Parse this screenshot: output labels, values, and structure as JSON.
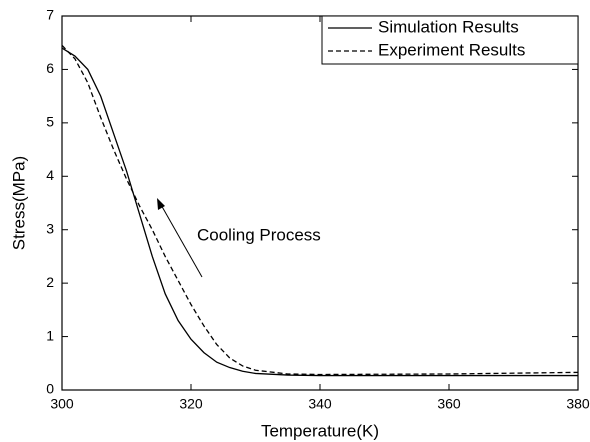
{
  "chart_data": {
    "type": "line",
    "x_label": "Temperature(K)",
    "y_label": "Stress(MPa)",
    "x": [
      300,
      302,
      304,
      306,
      308,
      310,
      312,
      314,
      316,
      318,
      320,
      322,
      324,
      326,
      328,
      330,
      335,
      340,
      360,
      380
    ],
    "series": [
      {
        "name": "Simulation Results",
        "color": "#000000",
        "linestyle": "solid",
        "values": [
          6.4,
          6.25,
          6.0,
          5.5,
          4.8,
          4.1,
          3.3,
          2.5,
          1.8,
          1.3,
          0.95,
          0.7,
          0.52,
          0.42,
          0.35,
          0.31,
          0.28,
          0.27,
          0.27,
          0.27
        ]
      },
      {
        "name": "Experiment Results",
        "color": "#000000",
        "linestyle": "dashed",
        "values": [
          6.45,
          6.2,
          5.75,
          5.1,
          4.5,
          3.95,
          3.45,
          3.0,
          2.5,
          2.05,
          1.6,
          1.2,
          0.85,
          0.6,
          0.45,
          0.37,
          0.3,
          0.29,
          0.3,
          0.33
        ]
      }
    ],
    "xlim": [
      300,
      380
    ],
    "xticks": [
      300,
      320,
      340,
      360,
      380
    ],
    "ylim": [
      0,
      7
    ],
    "yticks": [
      0,
      1,
      2,
      3,
      4,
      5,
      6,
      7
    ],
    "legend": "upper right",
    "annotation": "Cooling Process"
  }
}
